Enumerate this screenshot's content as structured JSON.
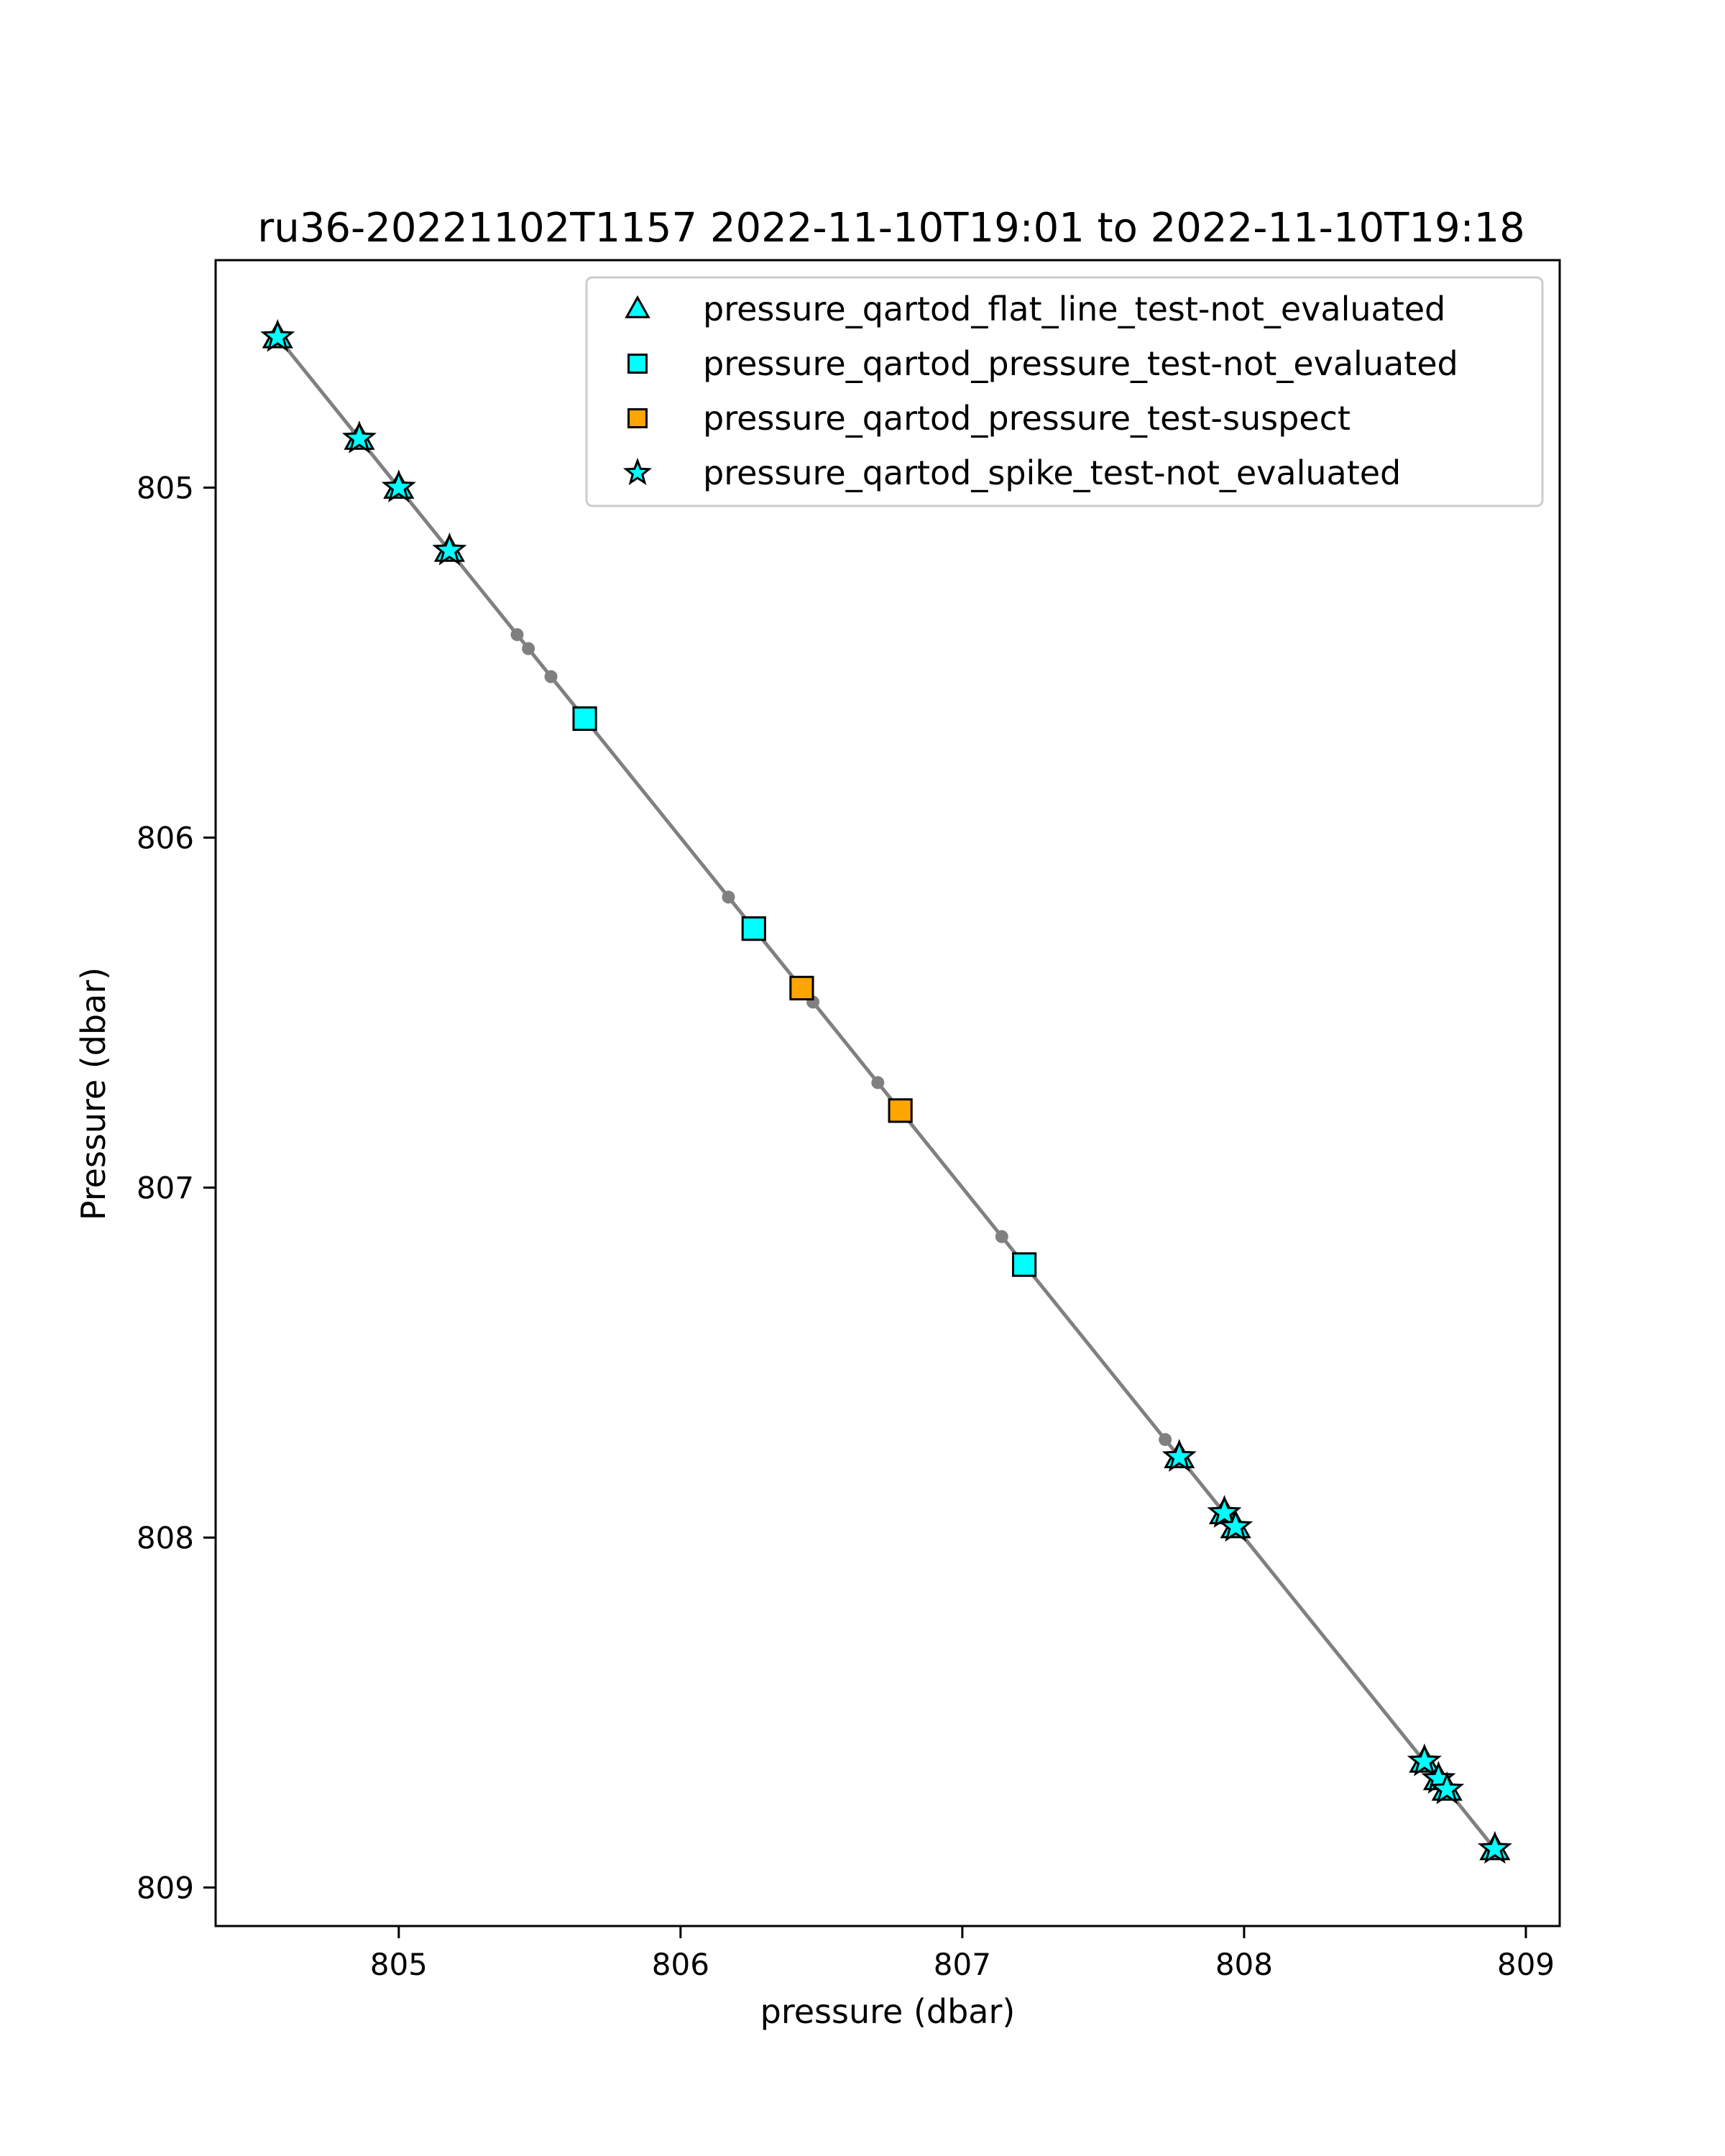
{
  "chart_data": {
    "type": "scatter",
    "title": "ru36-20221102T1157 2022-11-10T19:01 to 2022-11-10T19:18",
    "xlabel": "pressure (dbar)",
    "ylabel": "Pressure (dbar)",
    "xlim": [
      804.35,
      809.12
    ],
    "ylim": [
      809.11,
      804.35
    ],
    "y_inverted": true,
    "grid": false,
    "legend_position": "top-right",
    "xticks": [
      805,
      806,
      807,
      808,
      809
    ],
    "yticks": [
      805,
      806,
      807,
      808,
      809
    ],
    "line": {
      "color": "#808080",
      "x": [
        804.57,
        804.85,
        804.87,
        805.0,
        805.18,
        805.19,
        805.42,
        805.46,
        805.54,
        805.66,
        806.17,
        806.26,
        806.43,
        806.47,
        806.7,
        806.78,
        807.14,
        807.22,
        807.72,
        807.77,
        807.93,
        807.97,
        808.64,
        808.69,
        808.72,
        808.89
      ],
      "y": [
        804.57,
        804.85,
        804.87,
        805.0,
        805.18,
        805.19,
        805.42,
        805.46,
        805.54,
        805.66,
        806.17,
        806.26,
        806.43,
        806.47,
        806.7,
        806.78,
        807.14,
        807.22,
        807.72,
        807.77,
        807.93,
        807.97,
        808.64,
        808.69,
        808.72,
        808.89
      ]
    },
    "series": [
      {
        "name": "pressure_qartod_flat_line_test-not_evaluated",
        "marker": "triangle",
        "color": "#00ffff",
        "x": [
          804.57,
          804.86,
          805.0,
          805.18,
          807.77,
          807.93,
          807.97,
          808.64,
          808.69,
          808.72,
          808.89
        ],
        "y": [
          804.57,
          804.86,
          805.0,
          805.18,
          807.77,
          807.93,
          807.97,
          808.64,
          808.69,
          808.72,
          808.89
        ]
      },
      {
        "name": "pressure_qartod_pressure_test-not_evaluated",
        "marker": "square",
        "color": "#00ffff",
        "x": [
          805.66,
          806.26,
          807.22
        ],
        "y": [
          805.66,
          806.26,
          807.22
        ]
      },
      {
        "name": "pressure_qartod_pressure_test-suspect",
        "marker": "square",
        "color": "#ffa500",
        "x": [
          806.43,
          806.78
        ],
        "y": [
          806.43,
          806.78
        ]
      },
      {
        "name": "pressure_qartod_spike_test-not_evaluated",
        "marker": "star",
        "color": "#00ffff",
        "x": [
          804.57,
          804.86,
          805.0,
          805.18,
          807.77,
          807.93,
          807.97,
          808.64,
          808.69,
          808.72,
          808.89
        ],
        "y": [
          804.57,
          804.86,
          805.0,
          805.18,
          807.77,
          807.93,
          807.97,
          808.64,
          808.69,
          808.72,
          808.89
        ]
      }
    ]
  }
}
